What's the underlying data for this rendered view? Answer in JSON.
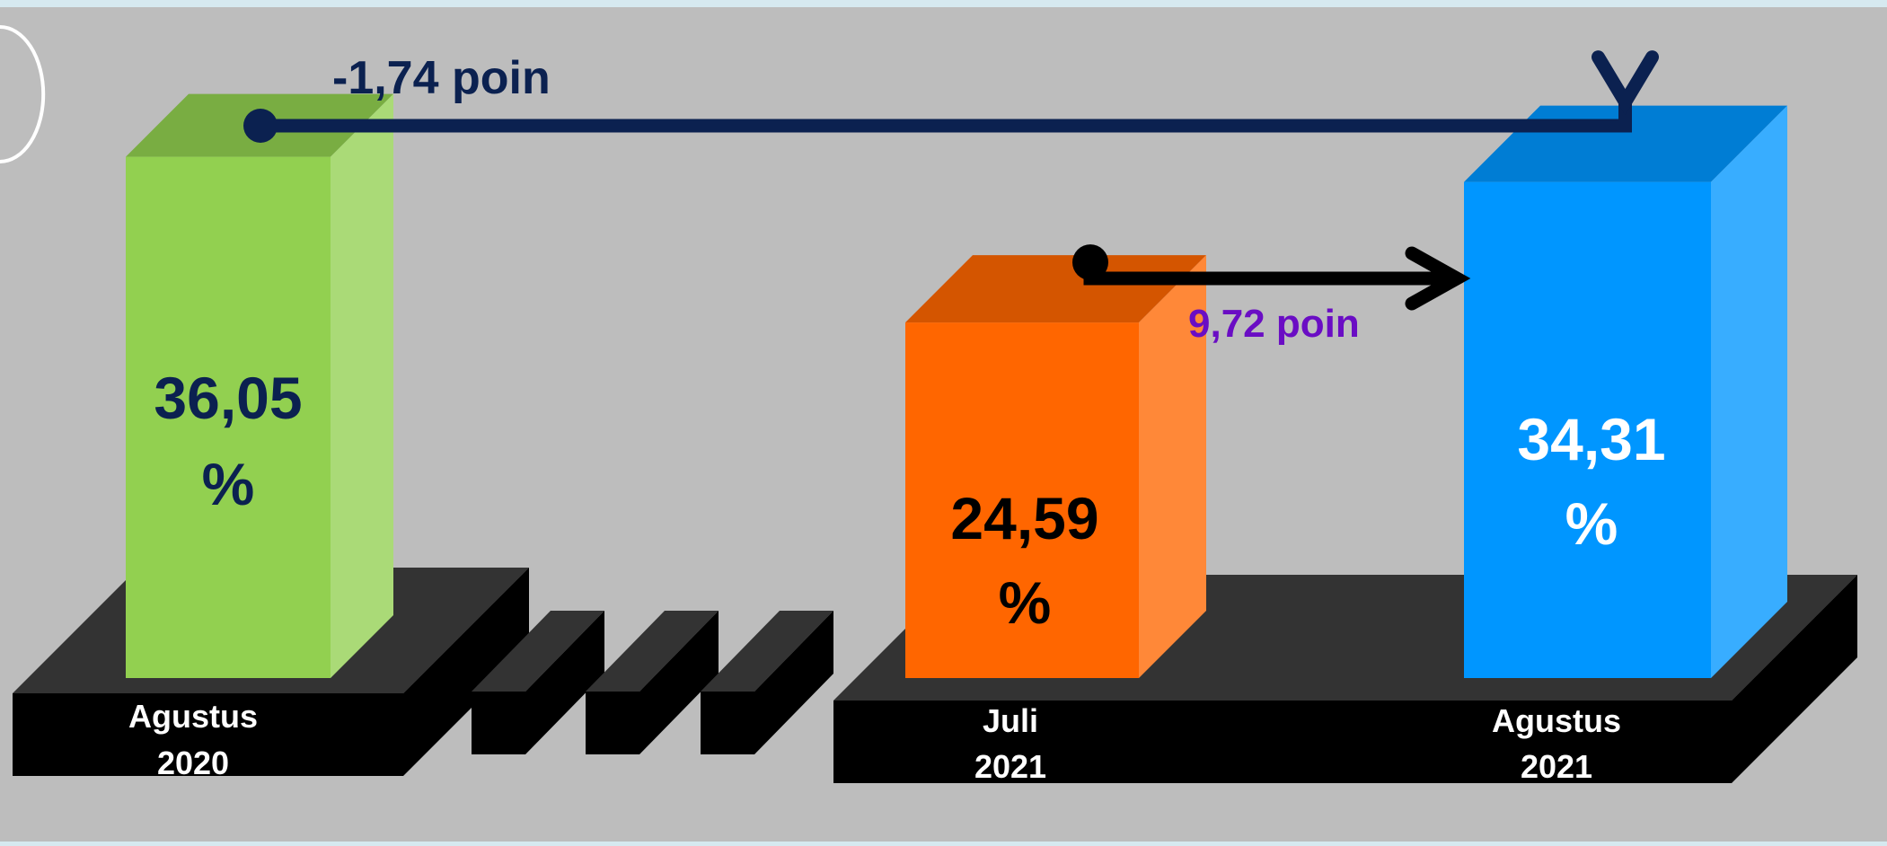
{
  "chart_data": {
    "type": "bar",
    "categories": [
      {
        "line1": "Agustus",
        "line2": "2020"
      },
      {
        "line1": "Juli",
        "line2": "2021"
      },
      {
        "line1": "Agustus",
        "line2": "2021"
      }
    ],
    "values": [
      36.05,
      24.59,
      34.31
    ],
    "value_labels": [
      {
        "line1": "36,05",
        "line2": "%"
      },
      {
        "line1": "24,59",
        "line2": "%"
      },
      {
        "line1": "34,31",
        "line2": "%"
      }
    ],
    "annotations": [
      {
        "text": "-1,74 poin",
        "from": 0,
        "to": 2,
        "color": "#0b2150"
      },
      {
        "text": "9,72 poin",
        "from": 1,
        "to": 2,
        "color": "#6a0dc4"
      }
    ],
    "colors": {
      "background": "#bdbdbd",
      "bar_0": "#92d050",
      "bar_1": "#ff6600",
      "bar_2": "#0096ff",
      "base": "#000000",
      "base_top": "#333333"
    },
    "axis_break": true,
    "grid": false,
    "legend": "none"
  }
}
